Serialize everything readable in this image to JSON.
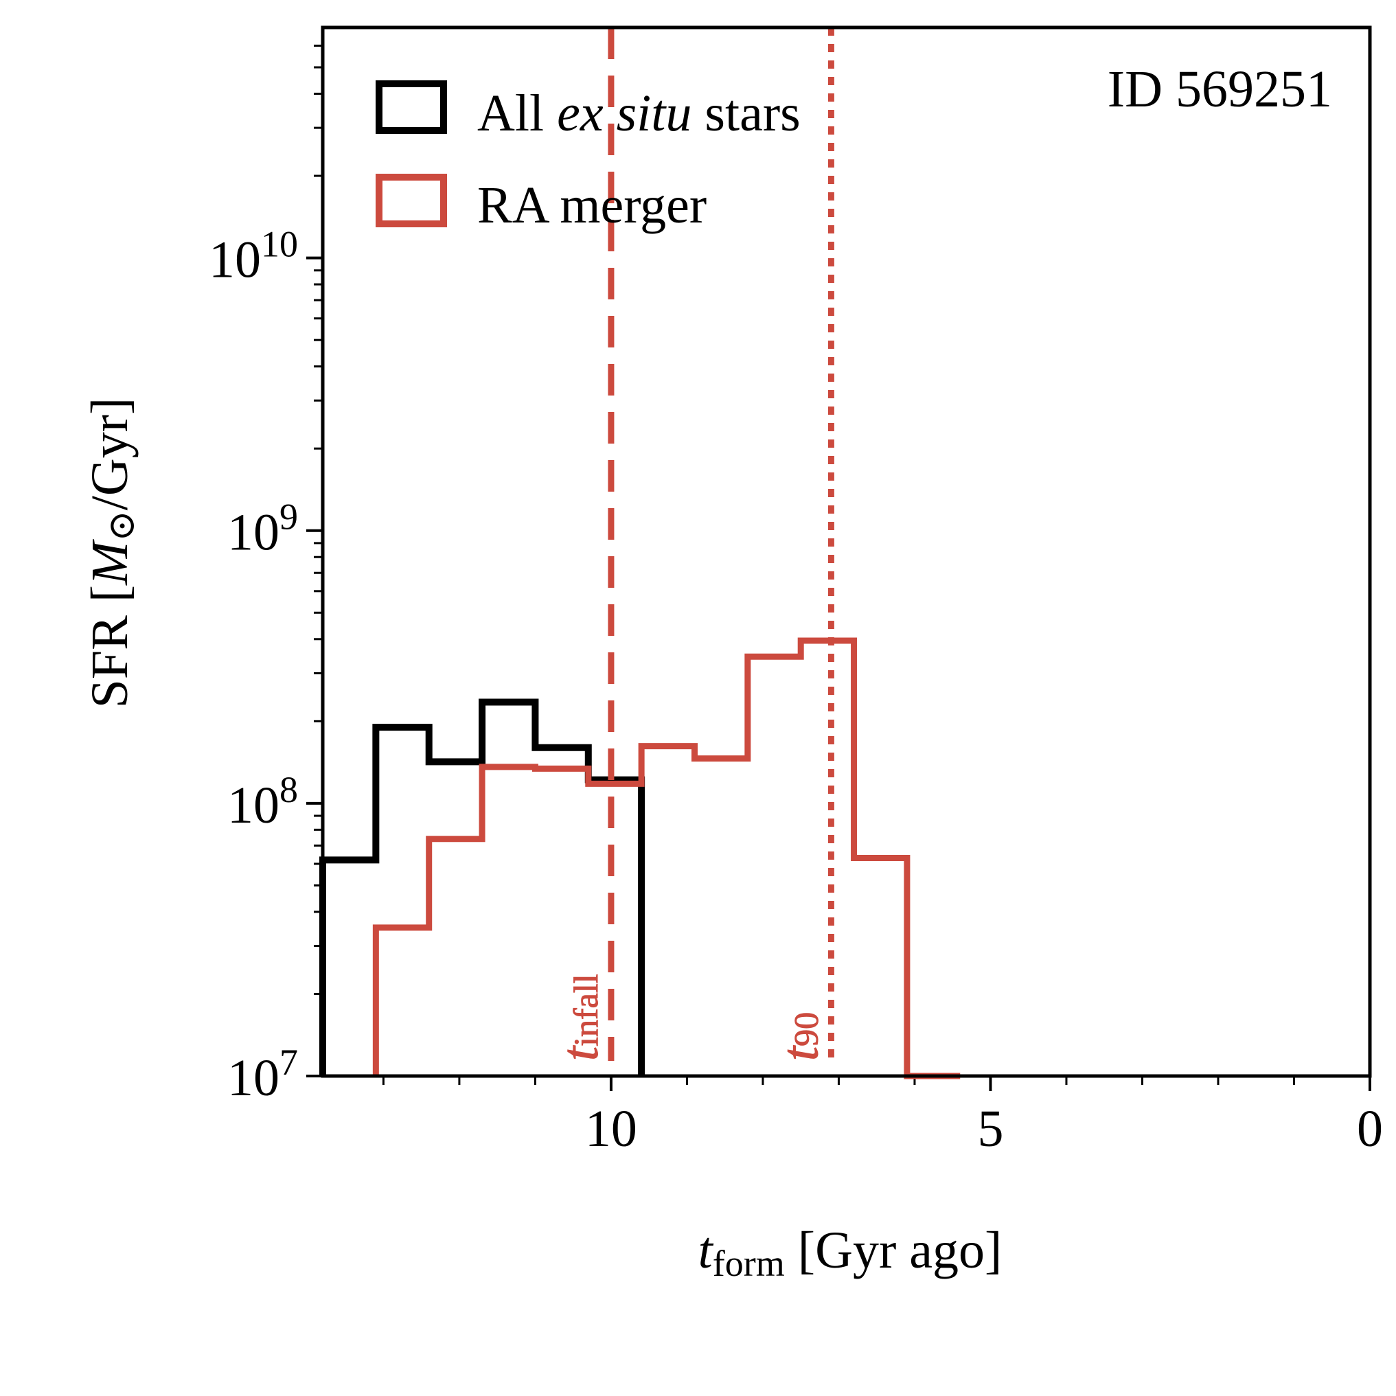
{
  "chart_data": {
    "type": "step-histogram",
    "xlabel_main": "t",
    "xlabel_sub": "form",
    "xlabel_rest": " [Gyr ago]",
    "ylabel_pre": "SFR [",
    "ylabel_m": "M",
    "ylabel_sun": "⊙",
    "ylabel_post": "/Gyr]",
    "xlim": [
      13.8,
      0
    ],
    "ylim": [
      10000000.0,
      70000000000.0
    ],
    "yscale": "log",
    "xticks_major": [
      10,
      5,
      0
    ],
    "xticks_major_labels": [
      "10",
      "5",
      "0"
    ],
    "xticks_minor": [
      13,
      12,
      11,
      9,
      8,
      7,
      6,
      4,
      3,
      2,
      1
    ],
    "yticks_major": [
      10000000.0,
      100000000.0,
      1000000000.0,
      10000000000.0
    ],
    "yticks_major_labels": [
      {
        "base": "10",
        "exp": "7"
      },
      {
        "base": "10",
        "exp": "8"
      },
      {
        "base": "10",
        "exp": "9"
      },
      {
        "base": "10",
        "exp": "10"
      }
    ],
    "annotation_id": "ID 569251",
    "legend": {
      "position": "upper-left",
      "entries": [
        {
          "pre": "All ",
          "italic": "ex situ",
          "post": " stars",
          "color": "#000000"
        },
        {
          "pre": "RA merger",
          "italic": "",
          "post": "",
          "color": "#cc4a3e"
        }
      ]
    },
    "series": [
      {
        "name": "All ex situ stars",
        "color": "#000000",
        "bin_edges": [
          13.8,
          13.1,
          12.4,
          11.7,
          11.0,
          10.3,
          9.6
        ],
        "values": [
          62000000.0,
          190000000.0,
          142000000.0,
          235000000.0,
          160000000.0,
          122000000.0
        ]
      },
      {
        "name": "RA merger",
        "color": "#cc4a3e",
        "bin_edges": [
          13.1,
          12.4,
          11.7,
          11.0,
          10.3,
          9.6,
          8.9,
          8.2,
          7.5,
          6.8,
          6.1,
          5.4
        ],
        "values": [
          35000000.0,
          74000000.0,
          136000000.0,
          134000000.0,
          118000000.0,
          162000000.0,
          146000000.0,
          345000000.0,
          395000000.0,
          63000000.0,
          10000000.0
        ]
      }
    ],
    "vlines": [
      {
        "name": "t_infall",
        "x": 10.0,
        "style": "dashed",
        "color": "#cc4a3e",
        "label_main": "t",
        "label_sub": "infall"
      },
      {
        "name": "t_90",
        "x": 7.1,
        "style": "dotted",
        "color": "#cc4a3e",
        "label_main": "t",
        "label_sub": "90"
      }
    ]
  }
}
